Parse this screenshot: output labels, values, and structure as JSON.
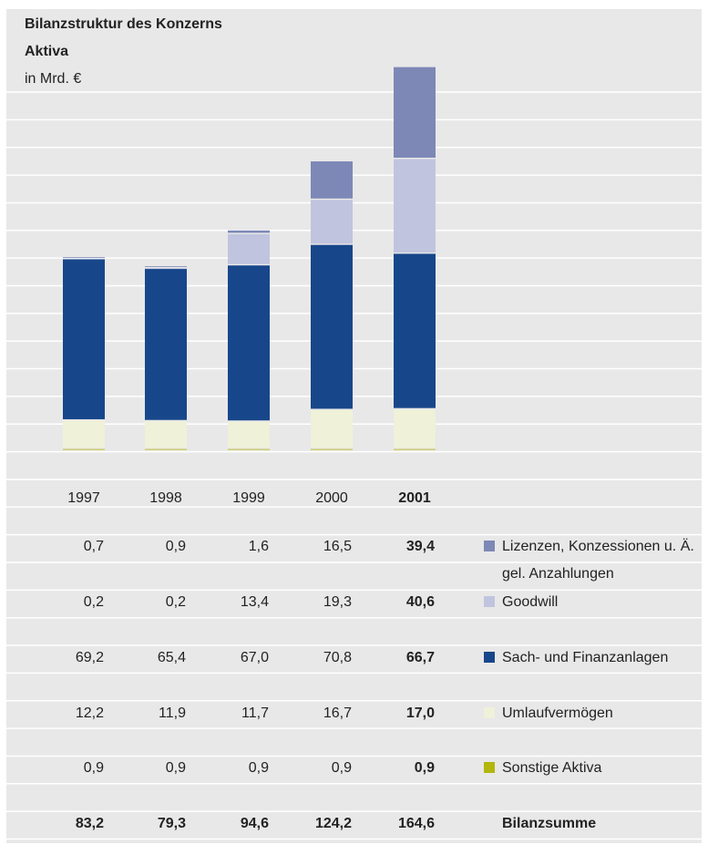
{
  "chart_data": {
    "type": "stacked_bar",
    "title": "Bilanzstruktur des Konzerns",
    "subtitle": "Aktiva",
    "unit_label": "in Mrd. €",
    "categories": [
      "1997",
      "1998",
      "1999",
      "2000",
      "2001"
    ],
    "series": [
      {
        "name": "Lizenzen, Konzessionen u. Ä. gel. Anzahlungen",
        "color": "#7d88b6",
        "values": [
          0.7,
          0.9,
          1.6,
          16.5,
          39.4
        ],
        "value_labels": [
          "0,7",
          "0,9",
          "1,6",
          "16,5",
          "39,4"
        ]
      },
      {
        "name": "Goodwill",
        "color": "#c1c4de",
        "values": [
          0.2,
          0.2,
          13.4,
          19.3,
          40.6
        ],
        "value_labels": [
          "0,2",
          "0,2",
          "13,4",
          "19,3",
          "40,6"
        ]
      },
      {
        "name": "Sach- und Finanzanlagen",
        "color": "#17478a",
        "values": [
          69.2,
          65.4,
          67.0,
          70.8,
          66.7
        ],
        "value_labels": [
          "69,2",
          "65,4",
          "67,0",
          "70,8",
          "66,7"
        ]
      },
      {
        "name": "Umlaufvermögen",
        "color": "#eff1d9",
        "values": [
          12.2,
          11.9,
          11.7,
          16.7,
          17.0
        ],
        "value_labels": [
          "12,2",
          "11,9",
          "11,7",
          "16,7",
          "17,0"
        ]
      },
      {
        "name": "Sonstige Aktiva",
        "color": "#b3b60c",
        "values": [
          0.9,
          0.9,
          0.9,
          0.9,
          0.9
        ],
        "value_labels": [
          "0,9",
          "0,9",
          "0,9",
          "0,9",
          "0,9"
        ]
      }
    ],
    "total": {
      "name": "Bilanzsumme",
      "values": [
        83.2,
        79.3,
        94.6,
        124.2,
        164.6
      ],
      "value_labels": [
        "83,2",
        "79,3",
        "94,6",
        "124,2",
        "164,6"
      ]
    }
  }
}
